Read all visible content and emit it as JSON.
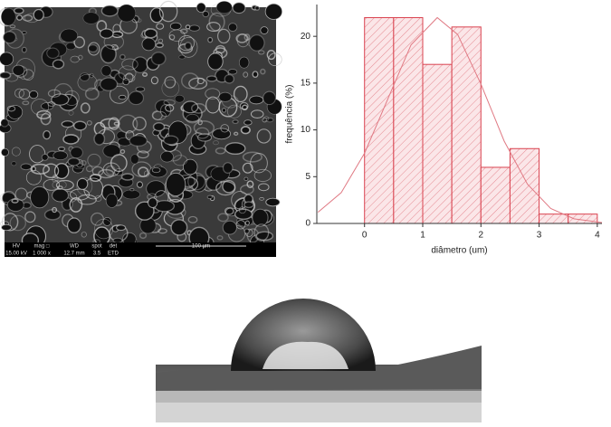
{
  "chart_data": {
    "type": "histogram",
    "bins": [
      0,
      0.5,
      1,
      1.5,
      2,
      2.5,
      3,
      3.5,
      4
    ],
    "values": [
      22,
      22,
      17,
      21,
      6,
      8,
      1,
      1
    ],
    "color": "#d9414e",
    "x_label": "diâmetro (um)",
    "y_label": "frequência (%)",
    "xlim": [
      -0.82,
      4.08
    ],
    "ylim": [
      0,
      23.4
    ],
    "xticks": [
      0,
      1,
      2,
      3,
      4
    ],
    "yticks": [
      0,
      5,
      10,
      15,
      20
    ],
    "fit": {
      "x": [
        -0.8,
        -0.4,
        0,
        0.4,
        0.8,
        1.25,
        1.6,
        2,
        2.4,
        2.8,
        3.2,
        3.6,
        4.08
      ],
      "values": [
        1.2,
        3.3,
        7.5,
        13.3,
        19.1,
        22,
        20.2,
        14.9,
        8.8,
        4.2,
        1.6,
        0.5,
        0.1
      ],
      "color": "#e07a84"
    }
  },
  "sem_image": {
    "labels": [
      "HV",
      "mag □",
      "WD",
      "spot",
      "det",
      "100 µm"
    ],
    "values": [
      "15.00 kV",
      "1 000 x",
      "12.7 mm",
      "3.5",
      "ETD"
    ]
  }
}
